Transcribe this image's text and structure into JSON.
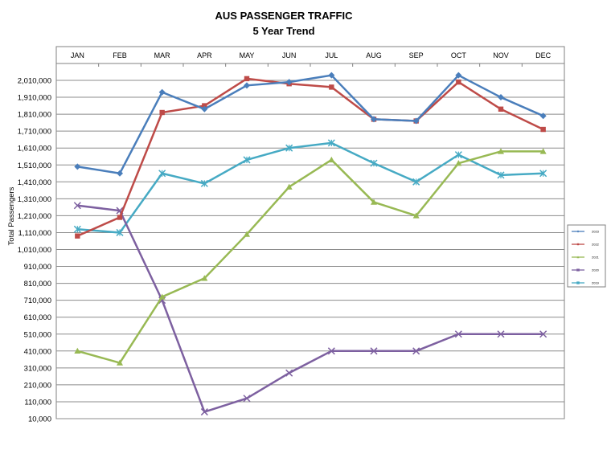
{
  "chart_data": {
    "type": "line",
    "title": "AUS PASSENGER TRAFFIC",
    "subtitle": "5 Year Trend",
    "xlabel": "",
    "ylabel": "Total Passengers",
    "categories": [
      "JAN",
      "FEB",
      "MAR",
      "APR",
      "MAY",
      "JUN",
      "JUL",
      "AUG",
      "SEP",
      "OCT",
      "NOV",
      "DEC"
    ],
    "y_ticks": [
      10000,
      110000,
      210000,
      310000,
      410000,
      510000,
      610000,
      710000,
      810000,
      910000,
      1010000,
      1110000,
      1210000,
      1310000,
      1410000,
      1510000,
      1610000,
      1710000,
      1810000,
      1910000,
      2010000
    ],
    "y_tick_labels": [
      "10,000",
      "110,000",
      "210,000",
      "310,000",
      "410,000",
      "510,000",
      "610,000",
      "710,000",
      "810,000",
      "910,000",
      "1,010,000",
      "1,110,000",
      "1,210,000",
      "1,310,000",
      "1,410,000",
      "1,510,000",
      "1,610,000",
      "1,710,000",
      "1,810,000",
      "1,910,000",
      "2,010,000"
    ],
    "ylim": [
      10000,
      2010000
    ],
    "x_axis_position": "top",
    "grid": true,
    "legend_position": "right",
    "series": [
      {
        "name": "2023",
        "color": "#4a7ebb",
        "marker": "diamond",
        "values": [
          1500000,
          1460000,
          1940000,
          1840000,
          1980000,
          2000000,
          2040000,
          1780000,
          1770000,
          2040000,
          1910000,
          1800000
        ]
      },
      {
        "name": "2022",
        "color": "#be4b48",
        "marker": "square",
        "values": [
          1090000,
          1200000,
          1820000,
          1860000,
          2020000,
          1990000,
          1970000,
          1780000,
          1770000,
          2000000,
          1840000,
          1720000
        ]
      },
      {
        "name": "2021",
        "color": "#98b954",
        "marker": "triangle",
        "values": [
          410000,
          340000,
          730000,
          840000,
          1100000,
          1380000,
          1540000,
          1290000,
          1210000,
          1520000,
          1590000,
          1590000
        ]
      },
      {
        "name": "2020",
        "color": "#7d60a0",
        "marker": "x",
        "values": [
          1270000,
          1240000,
          710000,
          50000,
          130000,
          280000,
          410000,
          410000,
          410000,
          510000,
          510000,
          510000
        ]
      },
      {
        "name": "2019",
        "color": "#46aac4",
        "marker": "star",
        "values": [
          1130000,
          1110000,
          1460000,
          1400000,
          1540000,
          1610000,
          1640000,
          1520000,
          1410000,
          1570000,
          1450000,
          1460000
        ]
      }
    ]
  }
}
